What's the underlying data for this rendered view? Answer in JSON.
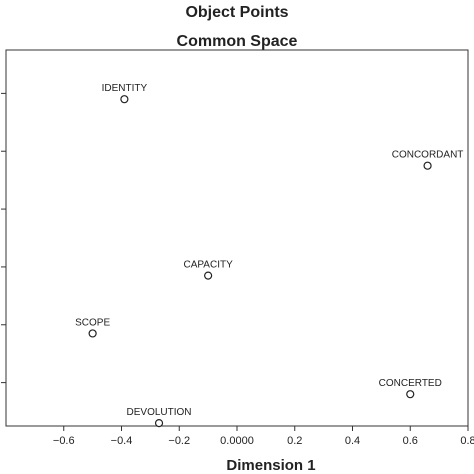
{
  "chart_data": {
    "type": "scatter",
    "title": "Object Points",
    "subtitle": "Common Space",
    "xlabel": "Dimension 1",
    "ylabel": "",
    "xlim": [
      -0.8,
      0.8
    ],
    "ylim": [
      -0.55,
      0.75
    ],
    "grid": false,
    "x_ticks": [
      -0.6,
      -0.4,
      -0.2,
      0.0,
      0.2,
      0.4,
      0.6,
      0.8
    ],
    "x_tick_labels": [
      "−0.6",
      "−0.4",
      "−0.2",
      "0.0000",
      "0.2",
      "0.4",
      "0.6",
      "0.8"
    ],
    "y_ticks": [
      -0.4,
      -0.2,
      0.0,
      0.2,
      0.4,
      0.6
    ],
    "points": [
      {
        "label": "IDENTITY",
        "x": -0.39,
        "y": 0.58
      },
      {
        "label": "CONCORDANT",
        "x": 0.66,
        "y": 0.35
      },
      {
        "label": "CAPACITY",
        "x": -0.1,
        "y": -0.03
      },
      {
        "label": "SCOPE",
        "x": -0.5,
        "y": -0.23
      },
      {
        "label": "CONCERTED",
        "x": 0.6,
        "y": -0.44
      },
      {
        "label": "DEVOLUTION",
        "x": -0.27,
        "y": -0.54
      }
    ]
  }
}
